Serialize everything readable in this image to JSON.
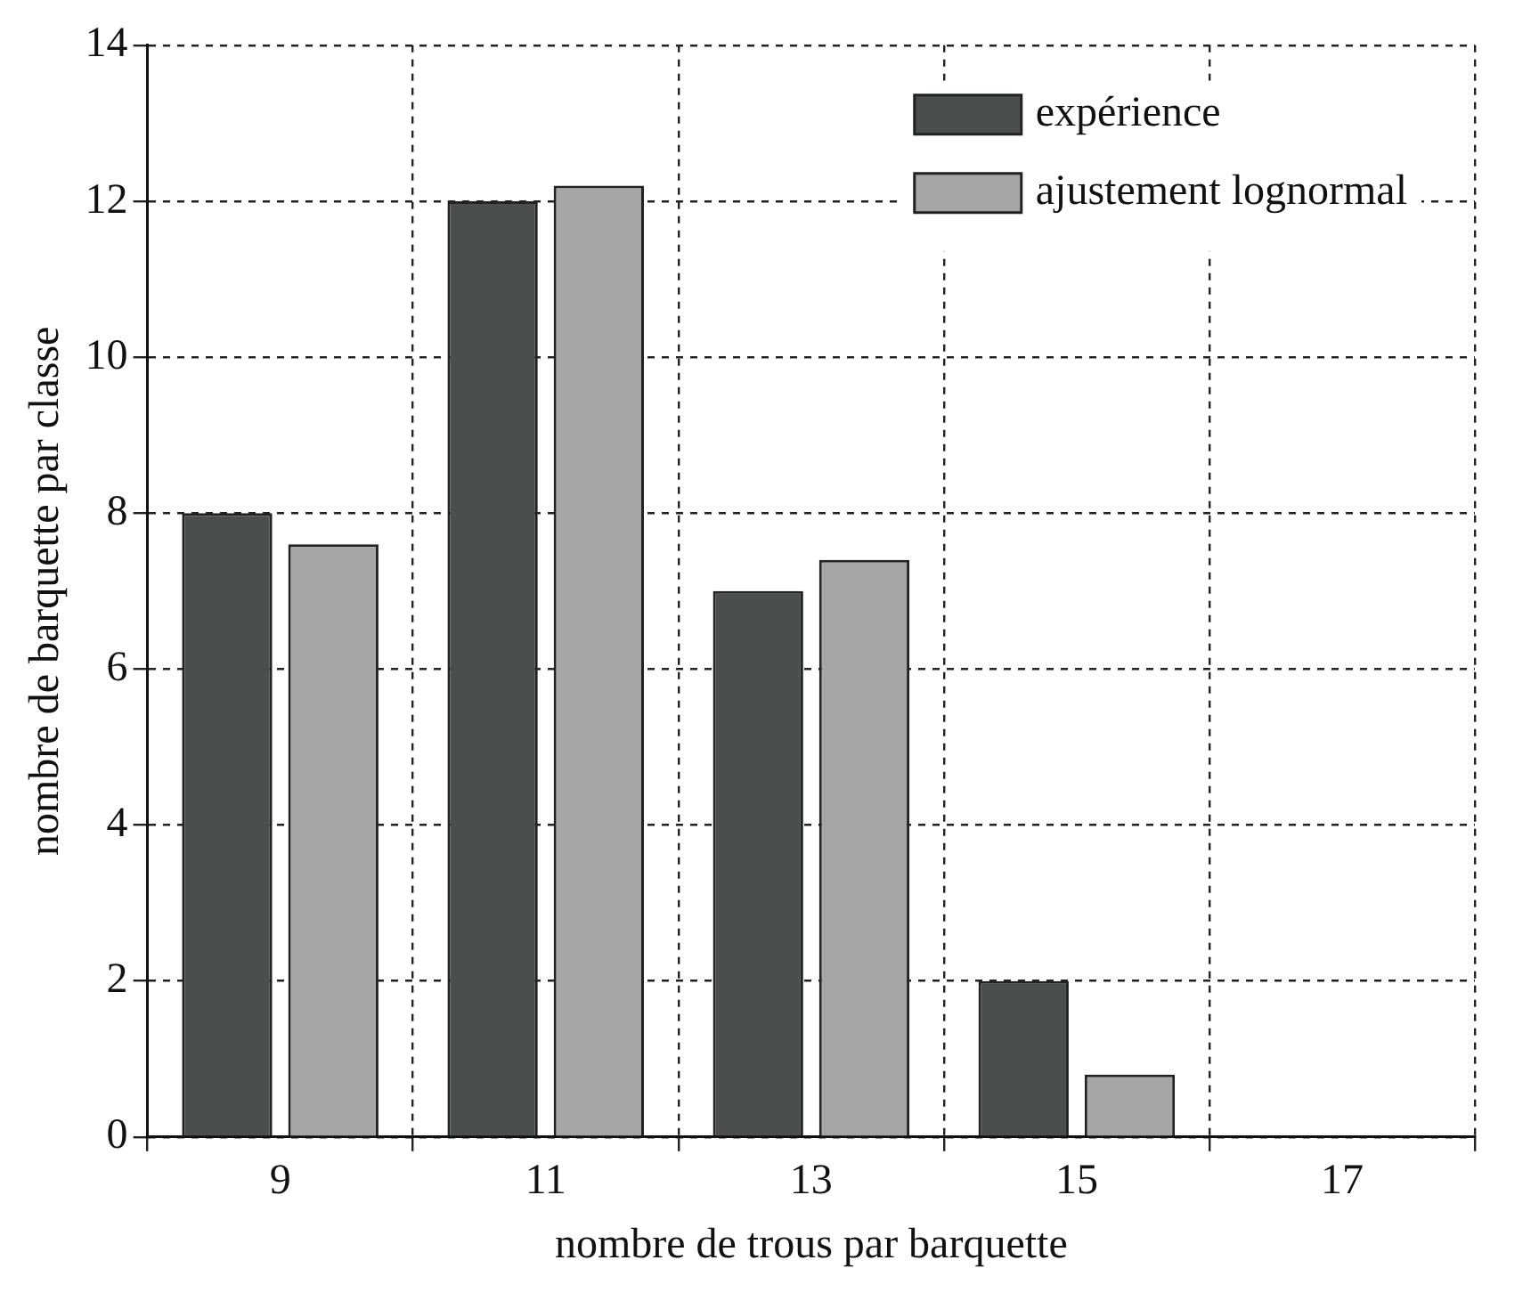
{
  "chart_data": {
    "type": "bar",
    "xlabel": "nombre de trous par barquette",
    "ylabel": "nombre de barquette par classe",
    "categories": [
      "9",
      "11",
      "13",
      "15",
      "17"
    ],
    "series": [
      {
        "name": "expérience",
        "color": "#4a4f4c",
        "values": [
          8,
          12,
          7,
          2,
          null
        ]
      },
      {
        "name": "ajustement lognormal",
        "color": "#a6a6a6",
        "values": [
          7.6,
          12.2,
          7.4,
          0.8,
          null
        ]
      }
    ],
    "ylim": [
      0,
      14
    ],
    "yticks": [
      0,
      2,
      4,
      6,
      8,
      10,
      12,
      14
    ],
    "grid": true,
    "legend": "top right"
  }
}
